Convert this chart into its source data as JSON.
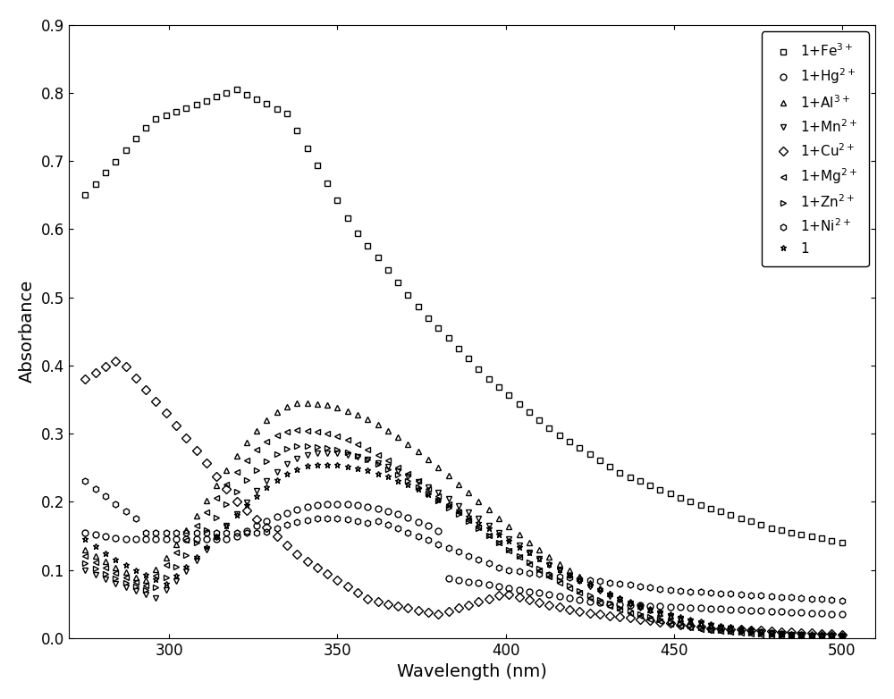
{
  "xlabel": "Wavelength (nm)",
  "ylabel": "Absorbance",
  "xlim": [
    270,
    510
  ],
  "ylim": [
    0.0,
    0.9
  ],
  "xticks": [
    300,
    350,
    400,
    450,
    500
  ],
  "yticks": [
    0.0,
    0.1,
    0.2,
    0.3,
    0.4,
    0.5,
    0.6,
    0.7,
    0.8,
    0.9
  ],
  "markersize": 5,
  "linewidth": 0.0,
  "markerfacecolor": "none",
  "legend_loc": "upper right",
  "legend_fontsize": 11
}
